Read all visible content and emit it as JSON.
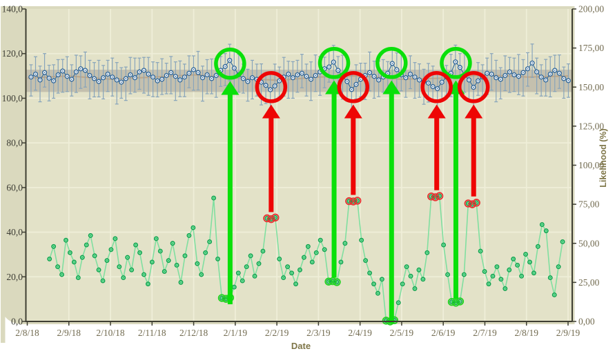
{
  "colors": {
    "chart_bg": "#dad9be",
    "plot_bg": "#e3e2c8",
    "grid": "#efeed8",
    "axis": "#3e3e32",
    "blue_line": "#3f74a3",
    "blue_marker_stroke": "#33689a",
    "error_bar": "#87a4bb",
    "green_line": "#80dfa0",
    "green_marker_fill": "#7ce8a2",
    "green_marker_stroke": "#13a150",
    "band": "#a6a295",
    "trend": "#bb9068",
    "annot_green": "#0ae00a",
    "annot_red": "#ee0505",
    "tick_label_left": "#3c3c34",
    "tick_label_right": "#726b50",
    "axis_title": "#7e7547"
  },
  "chart_data": {
    "type": "line",
    "title": "",
    "grid": true,
    "x_axis": {
      "title": "Date",
      "tick_labels": [
        "2/8/18",
        "2/9/18",
        "2/10/18",
        "2/11/18",
        "2/12/18",
        "2/1/19",
        "2/2/19",
        "2/3/19",
        "2/4/19",
        "2/5/19",
        "2/6/19",
        "2/7/19",
        "2/8/19",
        "2/9/19"
      ],
      "domain_days": [
        0,
        395
      ]
    },
    "y_left_axis": {
      "min": 0,
      "max": 140,
      "tick_step": 20,
      "tick_labels": [
        "0,0",
        "20,0",
        "40,0",
        "60,0",
        "80,0",
        "100,0",
        "120,0",
        "140,0"
      ]
    },
    "y_right_axis": {
      "title": "Likelihood (%)",
      "min": 0,
      "max": 200,
      "tick_step": 25,
      "tick_labels": [
        "0,00",
        "25,00",
        "50,00",
        "75,00",
        "100,00",
        "125,00",
        "150,00",
        "175,00",
        "200,00"
      ]
    },
    "band": {
      "axis": "left",
      "low": 102.8,
      "high": 112.8,
      "trend_days": [
        0,
        30,
        61,
        92,
        122,
        153,
        184,
        212,
        243,
        273,
        304,
        334,
        365,
        395
      ],
      "trend_values": [
        109,
        110,
        108.5,
        109.5,
        110.5,
        109,
        108,
        109.5,
        110,
        108.5,
        109,
        110.5,
        109.5,
        110
      ]
    },
    "series": [
      {
        "name": "metric-with-error-bars",
        "axis": "left",
        "marker": "open-circle",
        "start_day": 2.5,
        "step_days": 3.3,
        "values": [
          109.5,
          110.8,
          108.2,
          111.5,
          109.0,
          107.8,
          110.5,
          112.2,
          109.8,
          108.5,
          111.8,
          113.2,
          112.5,
          110.2,
          108.8,
          107.5,
          109.2,
          110.8,
          109.5,
          108.2,
          107.2,
          108.8,
          110.5,
          109.2,
          111.8,
          112.5,
          110.8,
          109.5,
          107.8,
          108.5,
          110.2,
          111.5,
          109.8,
          108.2,
          109.5,
          111.2,
          112.8,
          111.5,
          109.2,
          110.5,
          108.8,
          110.2,
          112.5,
          114.2,
          117.0,
          113.5,
          110.5,
          108.8,
          107.5,
          109.2,
          108.5,
          107.2,
          105.8,
          103.8,
          105.5,
          107.8,
          109.5,
          110.8,
          109.2,
          110.5,
          111.2,
          109.8,
          108.5,
          110.2,
          111.8,
          113.2,
          114.0,
          116.2,
          112.5,
          109.8,
          107.5,
          103.9,
          106.2,
          108.5,
          110.2,
          111.5,
          109.8,
          108.2,
          109.5,
          111.2,
          115.6,
          112.8,
          110.5,
          109.2,
          110.8,
          109.5,
          108.2,
          107.5,
          106.8,
          105.2,
          104.3,
          107.2,
          109.5,
          111.2,
          116.3,
          113.8,
          110.5,
          108.2,
          104.9,
          107.8,
          109.5,
          111.2,
          110.8,
          109.2,
          108.5,
          110.2,
          111.8,
          110.5,
          109.8,
          111.5,
          113.2,
          115.8,
          111.8,
          109.5,
          108.2,
          110.8,
          112.5,
          111.2,
          108.8,
          107.9
        ],
        "err_down": [
          8.5,
          7.2,
          9.8,
          6.5,
          10.2,
          7.8,
          8.2,
          9.5,
          6.8,
          7.5,
          9.2,
          8.8,
          7.5,
          10.5,
          8.2,
          6.9,
          9.5,
          7.8,
          8.5,
          10.8,
          7.2,
          9.8,
          8.5,
          6.5,
          7.8,
          10.2,
          9.5,
          8.8,
          7.2,
          6.8,
          8.2,
          9.5,
          10.8,
          7.5,
          8.8,
          6.5,
          9.2,
          7.8,
          10.5,
          8.5,
          6.8,
          9.8,
          7.2,
          8.5,
          9.2,
          10.5,
          7.8,
          6.5,
          8.8,
          9.5,
          7.5,
          10.2,
          8.2,
          9.8,
          6.8,
          7.2,
          8.5,
          10.8,
          9.2,
          7.8,
          6.5,
          8.8,
          9.5,
          7.2,
          10.5,
          8.5,
          6.8,
          9.2,
          7.8,
          10.2,
          8.8,
          9.5,
          6.5,
          7.8,
          10.8,
          8.2,
          9.8,
          7.5,
          6.8,
          8.5,
          9.2,
          10.5,
          7.2,
          8.8,
          6.5,
          9.5,
          7.8,
          10.2,
          8.5,
          6.8,
          9.8,
          7.5,
          8.2,
          10.5,
          6.9,
          9.2,
          7.8,
          8.8,
          10.2,
          6.5,
          8.5,
          9.5,
          7.2,
          10.8,
          8.8,
          6.8,
          9.2,
          7.5,
          8.2,
          10.5,
          7.8,
          6.5,
          9.8,
          8.5,
          7.2,
          10.2,
          9.5,
          6.8,
          8.8,
          7.5
        ],
        "err_up": [
          5.5,
          7.8,
          6.2,
          8.5,
          5.8,
          7.2,
          6.8,
          5.2,
          8.8,
          6.5,
          7.5,
          5.8,
          8.2,
          6.8,
          7.2,
          9.5,
          5.5,
          6.2,
          8.5,
          7.8,
          6.5,
          5.2,
          7.8,
          8.8,
          6.2,
          5.8,
          7.5,
          6.8,
          8.2,
          9.2,
          5.5,
          7.2,
          6.5,
          8.5,
          5.8,
          7.8,
          6.2,
          9.5,
          5.2,
          6.8,
          8.8,
          7.5,
          6.2,
          5.8,
          7.2,
          8.5,
          9.2,
          6.5,
          5.5,
          7.8,
          6.8,
          8.2,
          5.2,
          7.5,
          9.8,
          6.2,
          8.8,
          5.8,
          7.2,
          6.5,
          8.5,
          5.5,
          7.8,
          9.2,
          6.8,
          5.2,
          8.2,
          7.5,
          6.2,
          9.5,
          5.8,
          6.5,
          8.8,
          7.2,
          5.5,
          9.2,
          6.8,
          8.5,
          7.8,
          5.2,
          6.2,
          7.5,
          9.8,
          5.8,
          8.2,
          6.5,
          7.2,
          5.5,
          8.8,
          9.2,
          6.8,
          7.8,
          5.2,
          8.5,
          7.5,
          6.2,
          9.5,
          5.8,
          7.2,
          8.2,
          5.5,
          6.8,
          9.2,
          7.8,
          5.2,
          8.8,
          6.5,
          7.5,
          9.8,
          5.8,
          7.2,
          8.5,
          6.2,
          5.5,
          9.2,
          7.8,
          6.8,
          8.2,
          5.2,
          7.5
        ]
      },
      {
        "name": "likelihood",
        "axis": "right",
        "marker": "open-circle",
        "start_day": 16,
        "step_days": 3.0,
        "values": [
          40,
          48,
          35,
          30,
          52,
          44,
          38,
          28,
          41,
          49,
          55,
          42,
          33,
          26,
          39,
          46,
          53,
          35,
          28,
          41,
          33,
          49,
          44,
          30,
          24,
          38,
          53,
          45,
          32,
          39,
          50,
          36,
          25,
          42,
          55,
          60,
          37,
          30,
          44,
          51,
          79,
          40,
          15,
          14.5,
          15.2,
          22,
          31,
          26,
          35,
          42,
          29,
          37,
          45,
          66,
          65.5,
          66.5,
          40,
          28,
          35,
          31,
          24,
          33,
          41,
          48,
          38,
          44,
          52,
          46,
          25.5,
          25.8,
          25.2,
          38,
          50,
          77,
          76.8,
          77.3,
          52,
          39,
          31,
          24,
          18,
          27,
          0.5,
          0,
          0.8,
          12,
          24,
          35,
          29,
          21,
          33,
          27,
          44,
          80,
          79.5,
          80.3,
          49,
          30,
          12.5,
          12,
          12.8,
          30,
          75.5,
          75,
          76,
          45,
          32,
          24,
          29,
          35,
          27,
          21,
          33,
          40,
          36,
          29,
          43,
          38,
          31,
          48,
          62,
          58,
          28,
          17,
          35,
          51
        ]
      }
    ],
    "annotations": {
      "events": [
        {
          "kind": "normal-low-likelihood",
          "color": "green",
          "day": 148,
          "circle_value": 115.5,
          "arrow_from_pct": 11,
          "ringed_days": [
            142,
            145,
            148
          ],
          "ringed_pct": [
            15,
            14.5,
            15.2
          ]
        },
        {
          "kind": "normal-low-likelihood",
          "color": "green",
          "day": 224,
          "circle_value": 115.8,
          "arrow_from_pct": 28,
          "ringed_days": [
            220,
            223,
            226
          ],
          "ringed_pct": [
            25.5,
            25.8,
            25.2
          ]
        },
        {
          "kind": "normal-low-likelihood",
          "color": "green",
          "day": 266,
          "circle_value": 115.8,
          "arrow_from_pct": -1.5,
          "ringed_days": [
            262,
            265,
            268
          ],
          "ringed_pct": [
            0.5,
            0,
            0.8
          ]
        },
        {
          "kind": "normal-low-likelihood",
          "color": "green",
          "day": 313,
          "circle_value": 115.8,
          "arrow_from_pct": 14.5,
          "ringed_days": [
            310,
            313,
            316
          ],
          "ringed_pct": [
            12.5,
            12,
            12.8
          ]
        },
        {
          "kind": "anomaly-high-likelihood",
          "color": "red",
          "day": 178,
          "circle_value": 105.0,
          "arrow_from_pct": 70,
          "ringed_days": [
            175,
            178,
            181
          ],
          "ringed_pct": [
            66,
            65.5,
            66.5
          ]
        },
        {
          "kind": "anomaly-high-likelihood",
          "color": "red",
          "day": 238,
          "circle_value": 105.0,
          "arrow_from_pct": 81,
          "ringed_days": [
            235,
            238,
            241
          ],
          "ringed_pct": [
            77,
            76.8,
            77.3
          ]
        },
        {
          "kind": "anomaly-high-likelihood",
          "color": "red",
          "day": 299,
          "circle_value": 105.0,
          "arrow_from_pct": 84,
          "ringed_days": [
            295,
            298,
            301
          ],
          "ringed_pct": [
            80,
            79.5,
            80.3
          ]
        },
        {
          "kind": "anomaly-high-likelihood",
          "color": "red",
          "day": 326,
          "circle_value": 105.0,
          "arrow_from_pct": 80,
          "ringed_days": [
            322,
            325,
            328
          ],
          "ringed_pct": [
            75.5,
            75,
            76
          ]
        }
      ]
    }
  }
}
